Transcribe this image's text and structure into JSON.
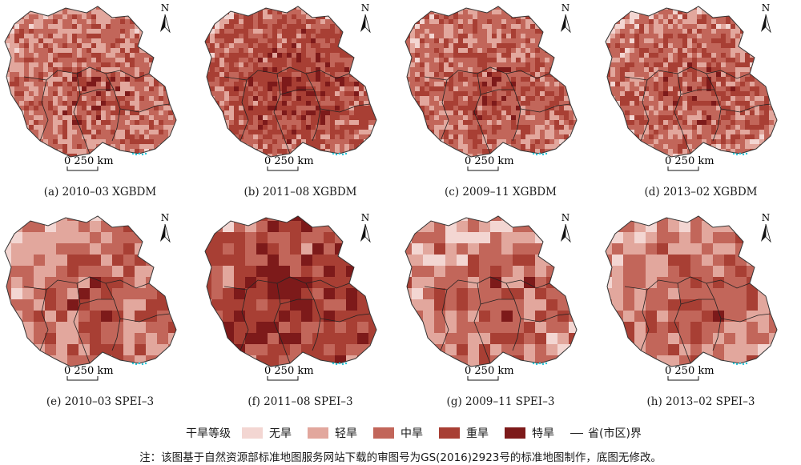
{
  "panels": [
    {
      "caption": "(a) 2010–03 XGBDM",
      "scale": "0   250 km",
      "north": "N",
      "colors": [
        "#f3d6d2",
        "#e2a79d",
        "#c2665a",
        "#a83f34",
        "#7d1a1a"
      ],
      "weights": [
        0.1,
        0.3,
        0.3,
        0.2,
        0.1
      ]
    },
    {
      "caption": "(b) 2011–08 XGBDM",
      "scale": "0   250 km",
      "north": "N",
      "colors": [
        "#f3d6d2",
        "#e2a79d",
        "#c2665a",
        "#a83f34",
        "#7d1a1a"
      ],
      "weights": [
        0.08,
        0.15,
        0.22,
        0.35,
        0.2
      ]
    },
    {
      "caption": "(c) 2009–11 XGBDM",
      "scale": "0   250 km",
      "north": "N",
      "colors": [
        "#f3d6d2",
        "#e2a79d",
        "#c2665a",
        "#a83f34",
        "#7d1a1a"
      ],
      "weights": [
        0.1,
        0.22,
        0.33,
        0.25,
        0.1
      ]
    },
    {
      "caption": "(d) 2013–02 XGBDM",
      "scale": "0   250 km",
      "north": "N",
      "colors": [
        "#f3d6d2",
        "#e2a79d",
        "#c2665a",
        "#a83f34",
        "#7d1a1a"
      ],
      "weights": [
        0.15,
        0.2,
        0.3,
        0.25,
        0.1
      ]
    },
    {
      "caption": "(e) 2010–03 SPEI–3",
      "scale": "0   250 km",
      "north": "N",
      "colors": [
        "#f3d6d2",
        "#e2a79d",
        "#c2665a",
        "#a83f34",
        "#7d1a1a"
      ],
      "weights": [
        0.15,
        0.25,
        0.3,
        0.2,
        0.1
      ]
    },
    {
      "caption": "(f) 2011–08 SPEI–3",
      "scale": "0   250 km",
      "north": "N",
      "colors": [
        "#f3d6d2",
        "#e2a79d",
        "#c2665a",
        "#a83f34",
        "#7d1a1a"
      ],
      "weights": [
        0.05,
        0.1,
        0.2,
        0.35,
        0.3
      ]
    },
    {
      "caption": "(g) 2009–11 SPEI–3",
      "scale": "0   250 km",
      "north": "N",
      "colors": [
        "#f3d6d2",
        "#e2a79d",
        "#c2665a",
        "#a83f34",
        "#7d1a1a"
      ],
      "weights": [
        0.2,
        0.2,
        0.3,
        0.2,
        0.1
      ]
    },
    {
      "caption": "(h) 2013–02 SPEI–3",
      "scale": "0   250 km",
      "north": "N",
      "colors": [
        "#f3d6d2",
        "#e2a79d",
        "#c2665a",
        "#a83f34",
        "#7d1a1a"
      ],
      "weights": [
        0.15,
        0.2,
        0.35,
        0.25,
        0.05
      ]
    }
  ],
  "legend": {
    "title": "干旱等级",
    "items": [
      {
        "label": "无旱",
        "color": "#f3d6d2"
      },
      {
        "label": "轻旱",
        "color": "#e2a79d"
      },
      {
        "label": "中旱",
        "color": "#c2665a"
      },
      {
        "label": "重旱",
        "color": "#a83f34"
      },
      {
        "label": "特旱",
        "color": "#7d1a1a"
      }
    ],
    "boundary_label": "省(市区)界"
  },
  "note": "注：该图基于自然资源部标准地图服务网站下载的审图号为GS(2016)2923号的标准地图制作，底图无修改。"
}
